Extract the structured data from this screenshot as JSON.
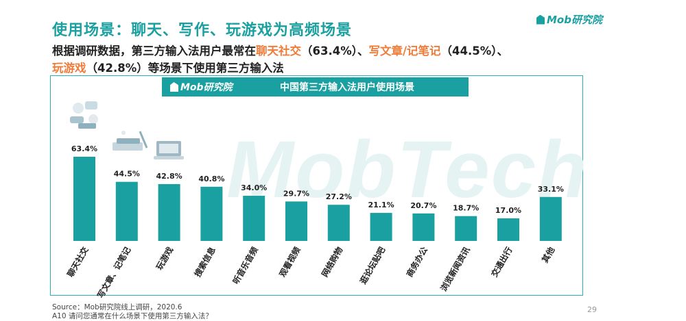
{
  "header": {
    "title": "使用场景：聊天、写作、玩游戏为高频场景",
    "brand": "Mob研究院"
  },
  "subtitle": {
    "p1": "根据调研数据，第三方输入法用户最常在",
    "h1": "聊天社交",
    "p2": "（63.4%）、",
    "h2": "写文章/记笔记",
    "p3": "（44.5%）、",
    "h3": "玩游戏",
    "p4": "（42.8%）等场景下使用第三方输入法"
  },
  "chart_header": {
    "brand": "Mob研究院",
    "title": "中国第三方输入法用户使用场景"
  },
  "watermark": "MobTech",
  "chart_data": {
    "type": "bar",
    "title": "中国第三方输入法用户使用场景",
    "categories": [
      "聊天社交",
      "写文章、记笔记",
      "玩游戏",
      "搜索信息",
      "听音乐音频",
      "观看视频",
      "网络购物",
      "逛论坛贴吧",
      "商务办公",
      "浏览新闻资讯",
      "交通出行",
      "其他"
    ],
    "values": [
      63.4,
      44.5,
      42.8,
      40.8,
      34.0,
      29.7,
      27.2,
      21.1,
      20.7,
      18.7,
      17.0,
      33.1
    ],
    "labels": [
      "63.4%",
      "44.5%",
      "42.8%",
      "40.8%",
      "34.0%",
      "29.7%",
      "27.2%",
      "21.1%",
      "20.7%",
      "18.7%",
      "17.0%",
      "33.1%"
    ],
    "unit": "%",
    "ylim": [
      0,
      100
    ],
    "color": "#1aa0a0",
    "grid": false,
    "legend": "none"
  },
  "footer": {
    "source": "Source：Mob研究院线上调研，2020.6",
    "question": "A10 请问您通常在什么场景下使用第三方输入法？",
    "page": "29"
  }
}
